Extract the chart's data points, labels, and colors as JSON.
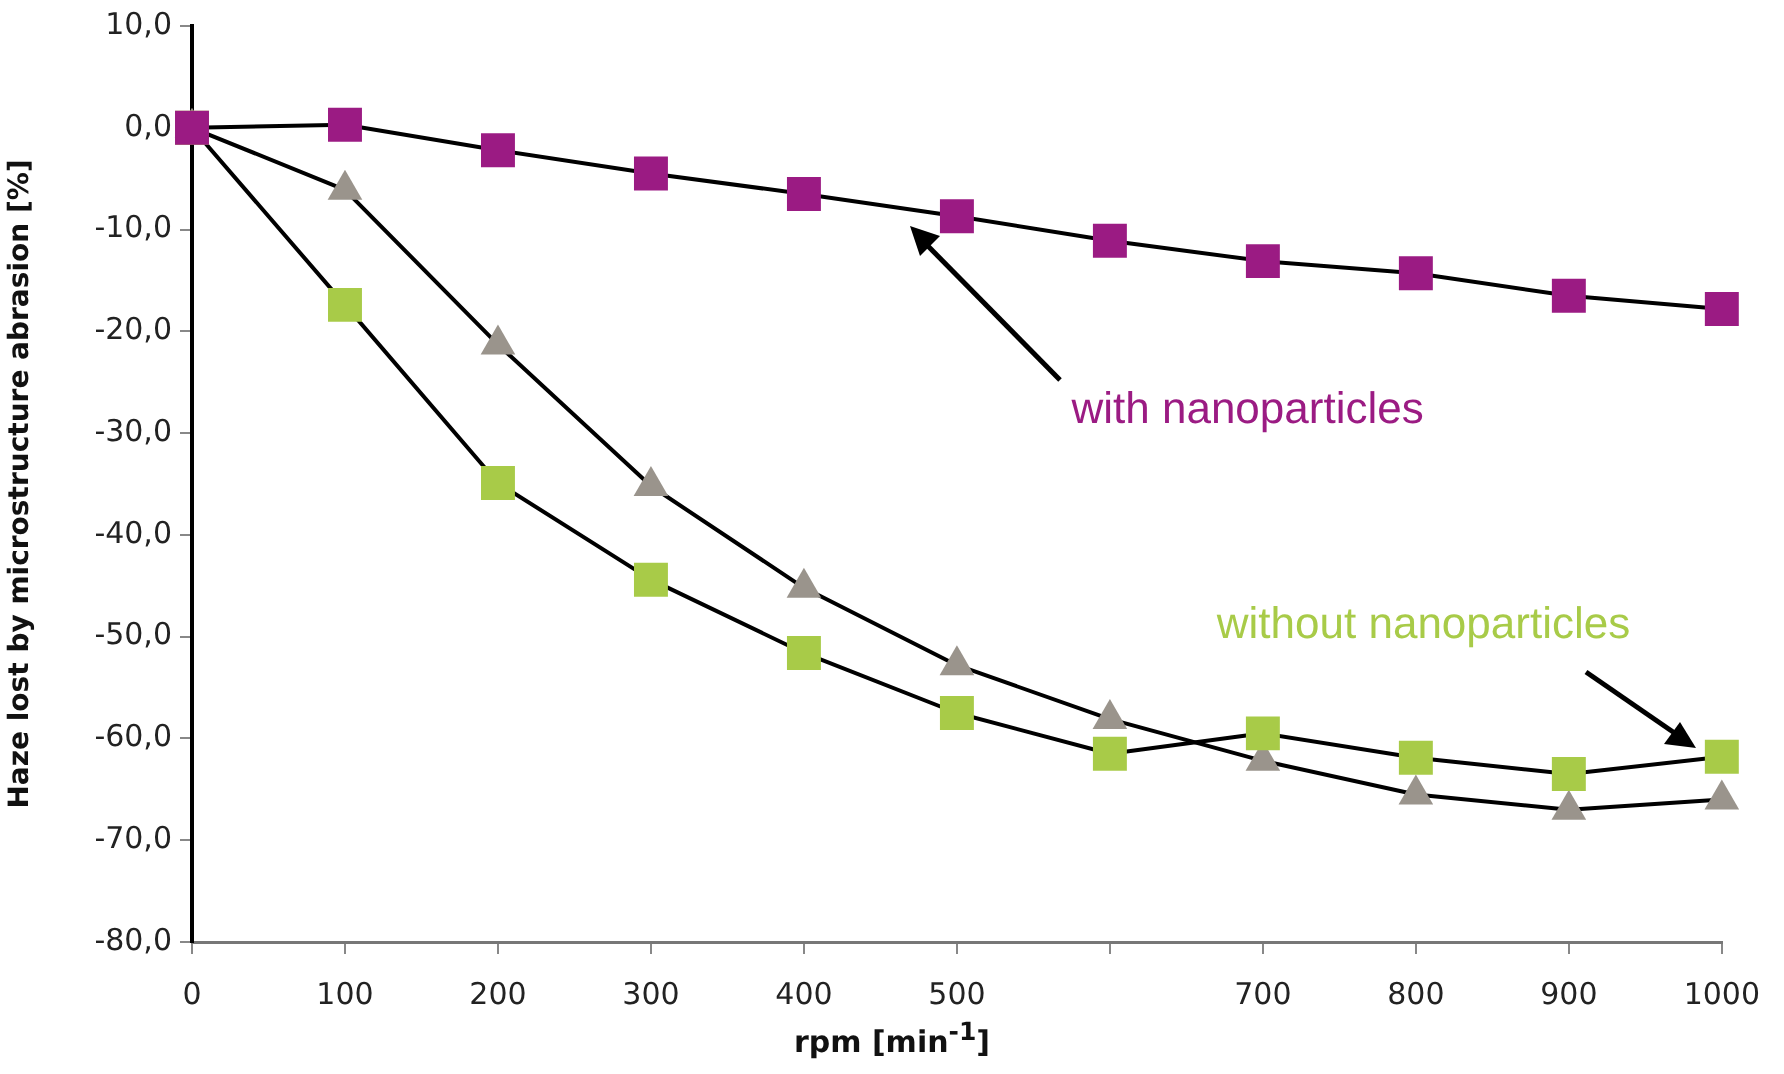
{
  "chart_data": {
    "type": "line",
    "ylabel": "Haze lost by microstructure abrasion [%]",
    "xlabel": "rpm [min$^{-1}$]",
    "x": [
      0,
      100,
      200,
      300,
      400,
      500,
      600,
      700,
      800,
      900,
      1000
    ],
    "series": [
      {
        "name": "with nanoparticles",
        "color": "#9b1b83",
        "marker": "square",
        "values": [
          0,
          0.3,
          -2.2,
          -4.5,
          -6.5,
          -8.7,
          -11.1,
          -13.1,
          -14.3,
          -16.5,
          -17.8
        ]
      },
      {
        "name": "without nanoparticles",
        "color": "#a8cb48",
        "marker": "square",
        "values": [
          0,
          -17.4,
          -34.9,
          -44.4,
          -51.6,
          -57.5,
          -61.5,
          -59.5,
          -61.9,
          -63.5,
          -61.8
        ]
      },
      {
        "color": "#9a948c",
        "marker": "triangle",
        "values": [
          0,
          -6.1,
          -21.3,
          -35.2,
          -45.2,
          -52.8,
          -58.1,
          -62.2,
          -65.5,
          -67.0,
          -66.0
        ]
      }
    ],
    "xlim": [
      0,
      1000
    ],
    "xticks": [
      0,
      100,
      200,
      300,
      400,
      500,
      {
        "value": 600,
        "label": null
      },
      700,
      800,
      900,
      1000
    ],
    "ylim": [
      -80,
      10
    ],
    "yticks": [
      {
        "value": -80,
        "label": "-80,0"
      },
      {
        "value": -70,
        "label": "-70,0"
      },
      {
        "value": -60,
        "label": "-60,0"
      },
      {
        "value": -50,
        "label": "-50,0"
      },
      {
        "value": -40,
        "label": "-40,0"
      },
      {
        "value": -30,
        "label": "-30,0"
      },
      {
        "value": -20,
        "label": "-20,0"
      },
      {
        "value": -10,
        "label": "-10,0"
      },
      {
        "value": 0,
        "label": "0,0"
      },
      {
        "value": 10,
        "label": "10,0"
      }
    ],
    "grid": false,
    "legend": false,
    "line_style": "solid"
  }
}
